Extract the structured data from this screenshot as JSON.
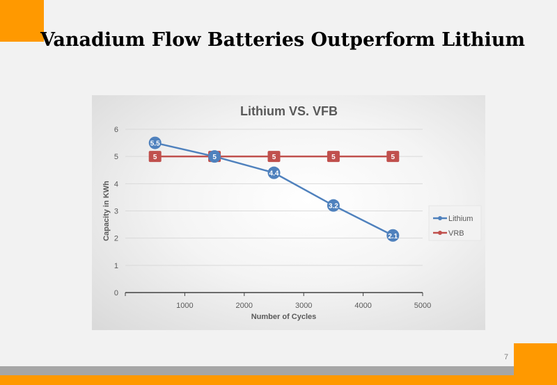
{
  "slide": {
    "title": "Vanadium Flow Batteries Outperform Lithium",
    "page_number": "7"
  },
  "colors": {
    "accent": "#ff9900",
    "lithium": "#4f81bd",
    "vrb": "#c0504d"
  },
  "chart_data": {
    "type": "line",
    "title": "Lithium VS. VFB",
    "xlabel": "Number of Cycles",
    "ylabel": "Capacity in KWh",
    "x": [
      500,
      1500,
      2500,
      3500,
      4500
    ],
    "xlim": [
      0,
      5000
    ],
    "ylim": [
      0,
      6
    ],
    "x_ticks": [
      1000,
      2000,
      3000,
      4000,
      5000
    ],
    "y_ticks": [
      0,
      1,
      2,
      3,
      4,
      5,
      6
    ],
    "grid": true,
    "legend": "right",
    "series": [
      {
        "name": "Lithium",
        "values": [
          5.5,
          5,
          4.4,
          3.2,
          2.1
        ],
        "labels": [
          "5.5",
          "5",
          "4.4",
          "3.2",
          "2.1"
        ],
        "color": "#4f81bd"
      },
      {
        "name": "VRB",
        "values": [
          5,
          5,
          5,
          5,
          5
        ],
        "labels": [
          "5",
          "5",
          "5",
          "5",
          "5"
        ],
        "color": "#c0504d"
      }
    ]
  }
}
